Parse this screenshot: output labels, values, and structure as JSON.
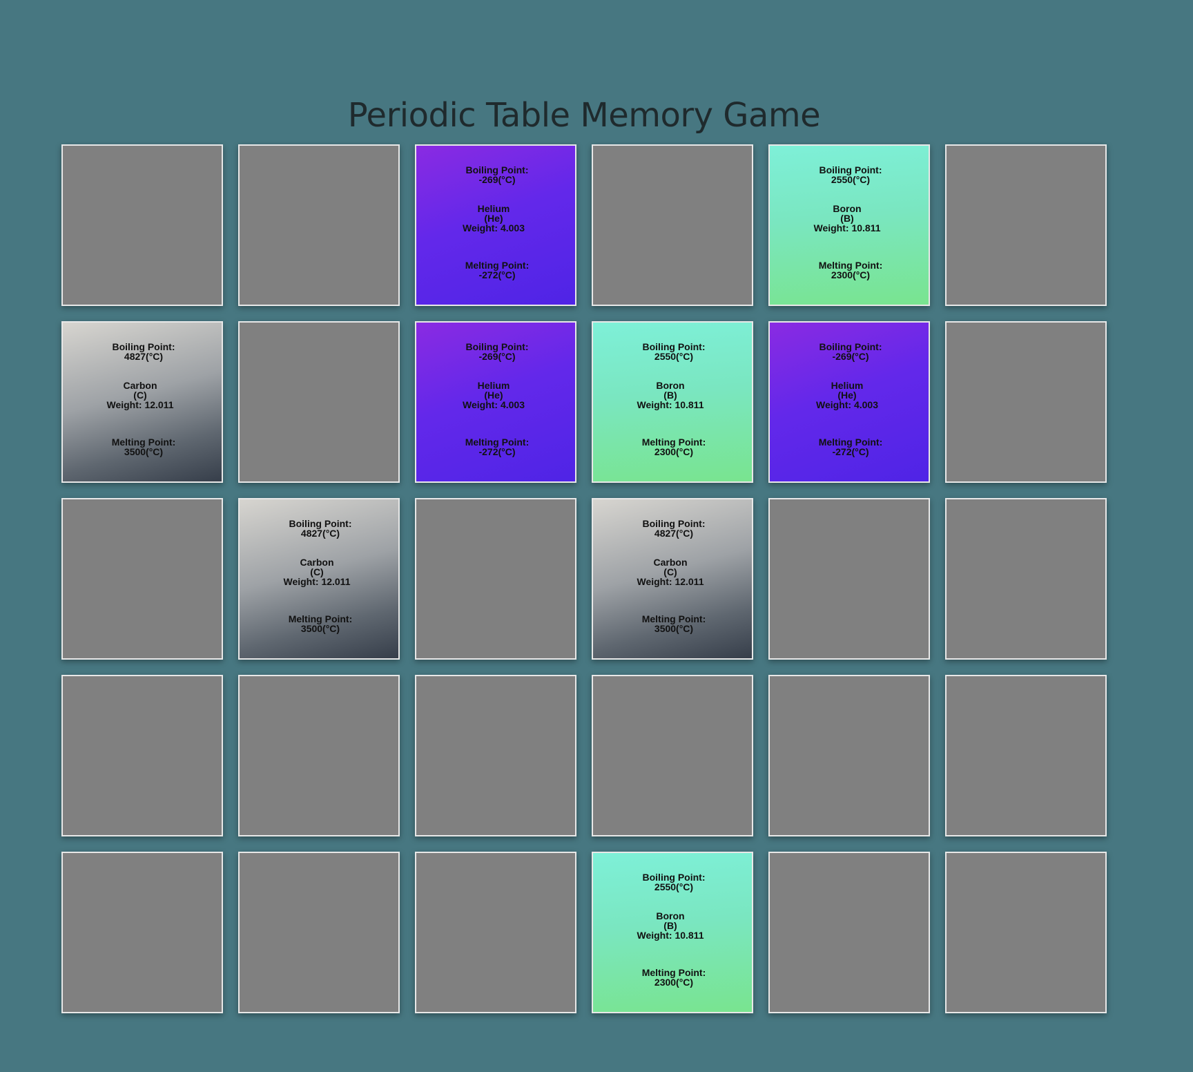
{
  "page": {
    "title": "Periodic Table Memory Game"
  },
  "labels": {
    "boiling": "Boiling Point:",
    "melting": "Melting Point:"
  },
  "elements": {
    "helium": {
      "name": "Helium",
      "symbol": "(He)",
      "weight": "Weight: 4.003",
      "boiling": "-269(°C)",
      "melting": "-272(°C)",
      "color_from": "#8a2be2",
      "color_to": "#4f24e6"
    },
    "boron": {
      "name": "Boron",
      "symbol": "(B)",
      "weight": "Weight: 10.811",
      "boiling": "2550(°C)",
      "melting": "2300(°C)",
      "color_from": "#7ef0d8",
      "color_to": "#79e48f"
    },
    "carbon": {
      "name": "Carbon",
      "symbol": "(C)",
      "weight": "Weight: 12.011",
      "boiling": "4827(°C)",
      "melting": "3500(°C)",
      "color_from": "#d7d5d0",
      "color_to": "#363e4a"
    }
  },
  "board": {
    "columns": 6,
    "rows": 5,
    "card_back_color": "#808080",
    "background_color": "#477781",
    "cards": [
      "hidden",
      "hidden",
      "helium",
      "hidden",
      "boron",
      "hidden",
      "carbon",
      "hidden",
      "helium",
      "boron",
      "helium",
      "hidden",
      "hidden",
      "carbon",
      "hidden",
      "carbon",
      "hidden",
      "hidden",
      "hidden",
      "hidden",
      "hidden",
      "hidden",
      "hidden",
      "hidden",
      "hidden",
      "hidden",
      "hidden",
      "boron",
      "hidden",
      "hidden"
    ]
  }
}
